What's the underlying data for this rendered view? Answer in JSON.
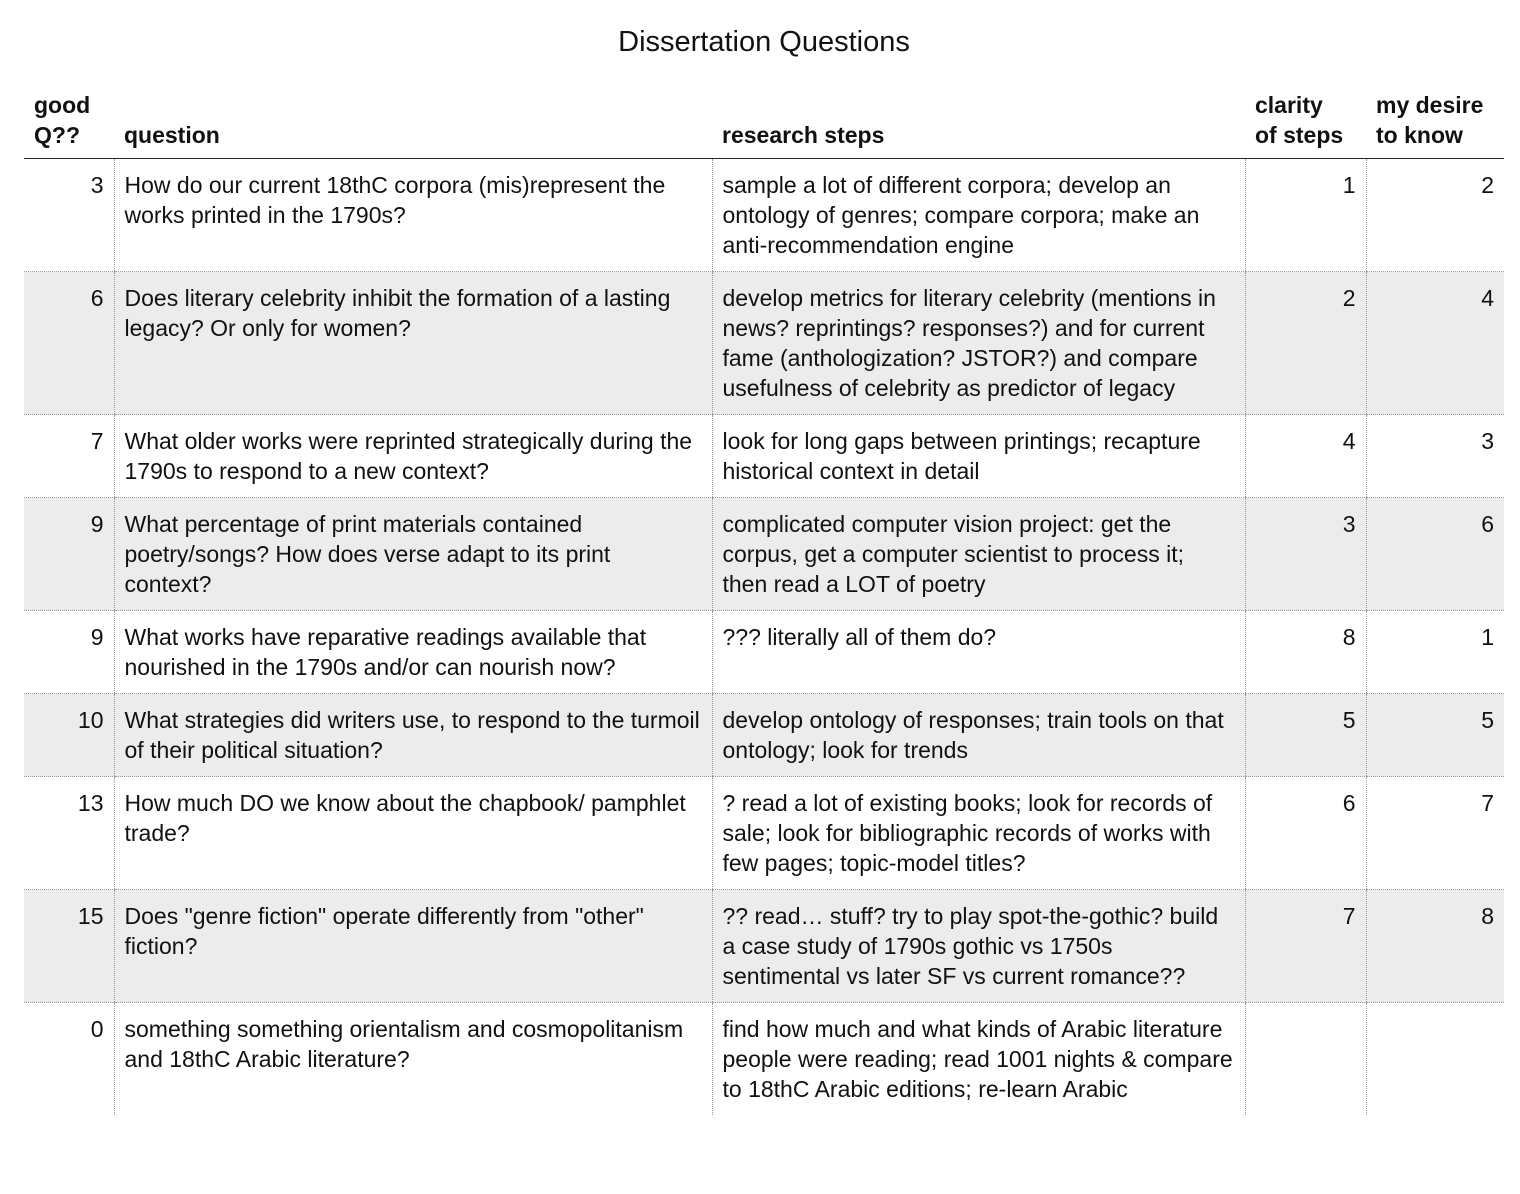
{
  "title": "Dissertation Questions",
  "columns": {
    "good_q": [
      "good",
      "Q??"
    ],
    "question": "question",
    "research_steps": "research steps",
    "clarity": [
      "clarity",
      "of steps"
    ],
    "desire": [
      "my desire",
      "to know"
    ]
  },
  "rows": [
    {
      "good_q": "3",
      "question": "How do our current 18thC corpora (mis)represent the works printed in the 1790s?",
      "steps": "sample a lot of different corpora; develop an ontology of genres; compare corpora; make an anti-recommendation engine",
      "clarity": "1",
      "desire": "2"
    },
    {
      "good_q": "6",
      "question": "Does literary celebrity inhibit the formation of a lasting legacy? Or only for women?",
      "steps": "develop metrics for literary celebrity (mentions in news? reprintings? responses?) and for current fame (anthologization? JSTOR?) and compare usefulness of celebrity as predictor of legacy",
      "clarity": "2",
      "desire": "4"
    },
    {
      "good_q": "7",
      "question": "What older works were reprinted strategically during the 1790s to respond to a new context?",
      "steps": "look for long gaps between printings; recapture historical context in detail",
      "clarity": "4",
      "desire": "3"
    },
    {
      "good_q": "9",
      "question": "What percentage of print materials contained poetry/songs? How does verse adapt to its print context?",
      "steps": "complicated computer vision project: get the corpus, get a computer scientist to process it; then read a LOT of poetry",
      "clarity": "3",
      "desire": "6"
    },
    {
      "good_q": "9",
      "question": "What works have reparative readings available that nourished in the 1790s and/or can nourish now?",
      "steps": "??? literally all of them do?",
      "clarity": "8",
      "desire": "1"
    },
    {
      "good_q": "10",
      "question": "What strategies did writers use, to respond to the turmoil of their political situation?",
      "steps": "develop ontology of responses; train tools on that ontology; look for trends",
      "clarity": "5",
      "desire": "5"
    },
    {
      "good_q": "13",
      "question": "How much DO we know about the chapbook/ pamphlet trade?",
      "steps": "? read a lot of existing books; look for records of sale; look for bibliographic records of works with few pages; topic-model titles?",
      "clarity": "6",
      "desire": "7"
    },
    {
      "good_q": "15",
      "question": "Does \"genre fiction\" operate differently from \"other\" fiction?",
      "steps": "?? read… stuff? try to play spot-the-gothic? build a case study of 1790s gothic vs 1750s sentimental vs later SF vs current romance??",
      "clarity": "7",
      "desire": "8"
    },
    {
      "good_q": "0",
      "question": "something something orientalism and cosmopolitanism and 18thC Arabic literature?",
      "steps": "find how much and what kinds of Arabic literature people were reading; read 1001 nights & compare to 18thC Arabic editions; re-learn Arabic",
      "clarity": "",
      "desire": ""
    }
  ]
}
